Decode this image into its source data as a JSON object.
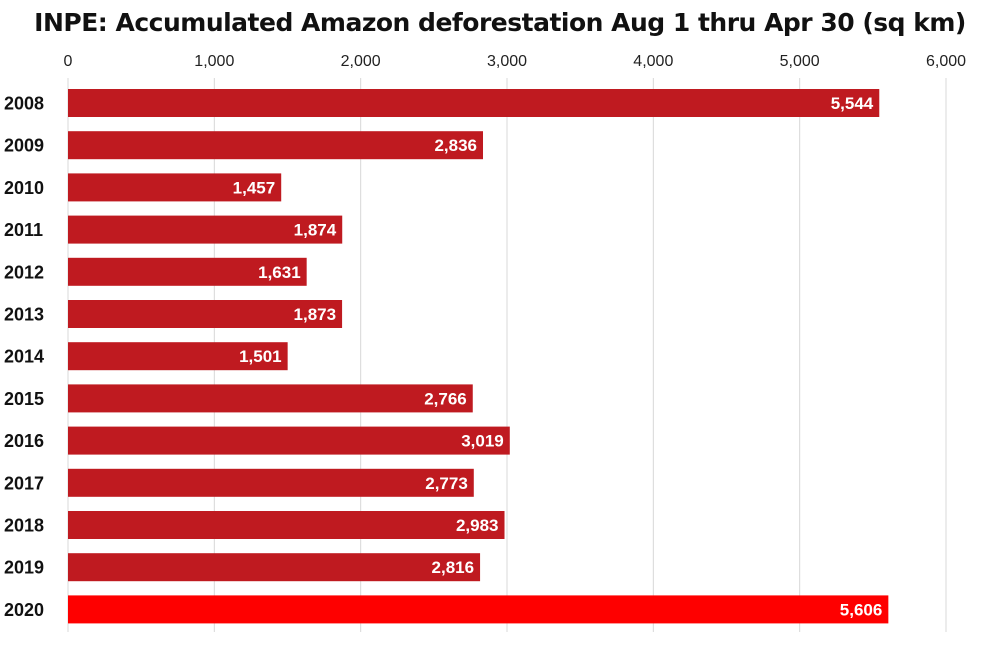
{
  "chart_data": {
    "type": "bar",
    "orientation": "horizontal",
    "title": "INPE: Accumulated Amazon deforestation Aug 1 thru Apr 30 (sq km)",
    "xlabel": "",
    "ylabel": "",
    "categories": [
      "2008",
      "2009",
      "2010",
      "2011",
      "2012",
      "2013",
      "2014",
      "2015",
      "2016",
      "2017",
      "2018",
      "2019",
      "2020"
    ],
    "values": [
      5544,
      2836,
      1457,
      1874,
      1631,
      1873,
      1501,
      2766,
      3019,
      2773,
      2983,
      2816,
      5606
    ],
    "data_labels": [
      "5,544",
      "2,836",
      "1,457",
      "1,874",
      "1,631",
      "1,873",
      "1,501",
      "2,766",
      "3,019",
      "2,773",
      "2,983",
      "2,816",
      "5,606"
    ],
    "xlim": [
      0,
      6000
    ],
    "x_ticks": [
      0,
      1000,
      2000,
      3000,
      4000,
      5000,
      6000
    ],
    "x_tick_labels": [
      "0",
      "1,000",
      "2,000",
      "3,000",
      "4,000",
      "5,000",
      "6,000"
    ],
    "x_axis_position": "top",
    "grid": true,
    "legend": false,
    "colors": {
      "bar": "#bf1a20",
      "highlight_bar": "#fe0000",
      "gridline": "#d8d8d8"
    },
    "highlight_category": "2020"
  }
}
